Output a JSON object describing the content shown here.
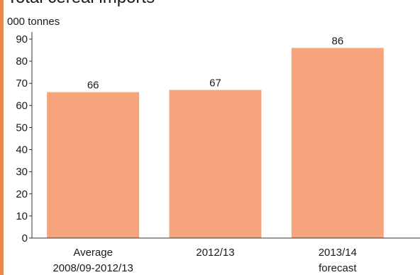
{
  "title": "Total cereal imports",
  "colors": {
    "bar": "#f5a47c",
    "accent_rule": "#e8894f",
    "axis": "#333333",
    "text": "#1a1a1a"
  },
  "chart_data": {
    "type": "bar",
    "title": "Total cereal imports",
    "ylabel": "000 tonnes",
    "xlabel": "",
    "ylim": [
      0,
      90
    ],
    "yticks": [
      0,
      10,
      20,
      30,
      40,
      50,
      60,
      70,
      80,
      90
    ],
    "grid": false,
    "categories": [
      [
        "Average",
        "2008/09-2012/13"
      ],
      [
        "2012/13"
      ],
      [
        "2013/14",
        "forecast"
      ]
    ],
    "values": [
      66,
      67,
      86
    ],
    "data_labels": [
      "66",
      "67",
      "86"
    ]
  }
}
